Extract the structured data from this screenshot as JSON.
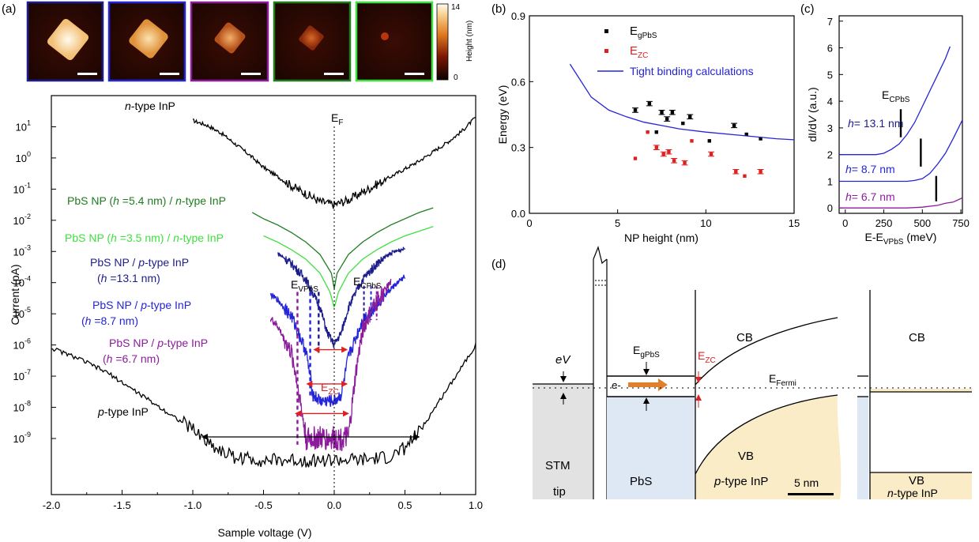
{
  "colors": {
    "black": "#000000",
    "dark_green": "#1e7d1e",
    "light_green": "#3ee03e",
    "navy": "#1c1c8c",
    "blue": "#2424d8",
    "purple": "#8c1c9c",
    "red": "#e02020",
    "orange": "#e0802a",
    "pbs_fill": "#dde8f4",
    "inp_fill": "#fbecc8",
    "tip_fill": "#e2e2e2"
  },
  "panel_a": {
    "panel_label": "(a)",
    "colorbar": {
      "title": "Height (nm)",
      "max_label": "14",
      "min_label": "0"
    },
    "image_frames": [
      "#1c1c8c",
      "#2424d8",
      "#8c1c9c",
      "#1e7d1e",
      "#3ee03e"
    ],
    "xlabel": "Sample voltage (V)",
    "ylabel": "Current (pA)",
    "xticks": [
      "-2.0",
      "-1.5",
      "-1.0",
      "-0.5",
      "0.0",
      "0.5",
      "1.0"
    ],
    "ytick_base": "10",
    "ytick_exps": [
      "1",
      "0",
      "-1",
      "-2",
      "-3",
      "-4",
      "-5",
      "-6",
      "-7",
      "-8",
      "-9"
    ],
    "fermi_label": "E",
    "fermi_sub": "F",
    "ev_label": "E",
    "ev_sub": "VPbS",
    "ec_label": "E",
    "ec_sub": "CPbS",
    "ezc_label": "E",
    "ezc_sub": "ZC",
    "curve_labels": {
      "ntype": {
        "pre": "",
        "em": "n",
        "post": "-type InP"
      },
      "ptype": {
        "pre": "",
        "em": "p",
        "post": "-type InP"
      },
      "g54": {
        "pre": "PbS NP (",
        "em": "h",
        "post": " =5.4 nm) / ",
        "em2": "n",
        "post2": "-type InP"
      },
      "g35": {
        "pre": "PbS NP (",
        "em": "h",
        "post": " =3.5 nm) / ",
        "em2": "n",
        "post2": "-type InP"
      },
      "b131_l1": {
        "pre": "PbS NP / ",
        "em": "p",
        "post": "-type InP"
      },
      "b131_l2": {
        "pre": "(",
        "em": "h",
        "post": " =13.1 nm)"
      },
      "b87_l1": {
        "pre": "PbS NP / ",
        "em": "p",
        "post": "-type InP"
      },
      "b87_l2": {
        "pre": "(",
        "em": "h",
        "post": " =8.7 nm)"
      },
      "p67_l1": {
        "pre": "PbS NP / ",
        "em": "p",
        "post": "-type InP"
      },
      "p67_l2": {
        "pre": "(",
        "em": "h",
        "post": " =6.7 nm)"
      }
    }
  },
  "panel_b": {
    "panel_label": "(b)",
    "xlabel": "NP height (nm)",
    "ylabel": "Energy (eV)",
    "xticks": [
      "0",
      "5",
      "10",
      "15"
    ],
    "yticks": [
      "0.0",
      "0.3",
      "0.6",
      "0.9"
    ],
    "legend": {
      "egpbs_main": "E",
      "egpbs_sub": "gPbS",
      "ezc_main": "E",
      "ezc_sub": "ZC",
      "tb": "Tight binding calculations"
    }
  },
  "panel_c": {
    "panel_label": "(c)",
    "xlabel_main": "E-E",
    "xlabel_sub": "VPbS",
    "xlabel_unit": " (meV)",
    "ylabel_main": "dI/d",
    "ylabel_em": "V",
    "ylabel_unit": " (a.u.)",
    "xticks": [
      "0",
      "250",
      "500",
      "750"
    ],
    "yticks": [
      "0",
      "1",
      "2",
      "3",
      "4",
      "5",
      "6",
      "7"
    ],
    "ec_label": "E",
    "ec_sub": "CPbS",
    "curve_labels": [
      "= 13.1 nm",
      "= 8.7 nm",
      "= 6.7 nm"
    ],
    "h_letter": "h"
  },
  "panel_d": {
    "panel_label": "(d)",
    "ev_label": "eV",
    "eg_label": "E",
    "eg_sub": "gPbS",
    "ezc_label": "E",
    "ezc_sub": "ZC",
    "electron": "e-",
    "cb": "CB",
    "vb": "VB",
    "cb_n": "CB",
    "vb_n": "VB",
    "efermi": "E",
    "efermi_sub": "Fermi",
    "stm1": "STM",
    "stm2": "tip",
    "pbs": "PbS",
    "ptype": {
      "em": "p",
      "post": "-type InP"
    },
    "ntype": {
      "em": "n",
      "post": "-type InP"
    },
    "scale": "5 nm"
  },
  "chart_data": [
    {
      "panel": "a",
      "type": "line",
      "title": "",
      "xlabel": "Sample voltage (V)",
      "ylabel": "Current (pA)",
      "xlim": [
        -2.0,
        1.0
      ],
      "ylog": true,
      "yticks_log10": [
        1,
        0,
        -1,
        -2,
        -3,
        -4,
        -5,
        -6,
        -7,
        -8,
        -9
      ],
      "series": [
        {
          "name": "n-type InP",
          "color": "#000000",
          "x": [
            -1.0,
            -0.9,
            -0.8,
            -0.7,
            -0.6,
            -0.5,
            -0.4,
            -0.3,
            -0.2,
            -0.1,
            0.0,
            0.1,
            0.2,
            0.3,
            0.4,
            0.5,
            0.6,
            0.7,
            0.8,
            0.9,
            1.0
          ],
          "log10_y": [
            1.2,
            1.05,
            0.8,
            0.45,
            0.1,
            -0.3,
            -0.6,
            -0.9,
            -1.15,
            -1.4,
            -1.5,
            -1.35,
            -1.1,
            -0.85,
            -0.6,
            -0.35,
            -0.1,
            0.2,
            0.5,
            0.85,
            1.3
          ],
          "noise": 0.12
        },
        {
          "name": "PbS NP (h =5.4 nm) / n-type InP",
          "color": "#1e7d1e",
          "x": [
            -0.58,
            -0.5,
            -0.4,
            -0.3,
            -0.2,
            -0.1,
            -0.02,
            0.0,
            0.02,
            0.1,
            0.2,
            0.3,
            0.4,
            0.5,
            0.6,
            0.7
          ],
          "log10_y": [
            -1.75,
            -1.95,
            -2.15,
            -2.4,
            -2.7,
            -3.1,
            -3.7,
            -4.2,
            -3.7,
            -3.1,
            -2.7,
            -2.4,
            -2.15,
            -1.95,
            -1.75,
            -1.6
          ],
          "noise": 0.0
        },
        {
          "name": "PbS NP (h =3.5 nm) / n-type InP",
          "color": "#3ee03e",
          "x": [
            -0.5,
            -0.4,
            -0.3,
            -0.2,
            -0.1,
            -0.03,
            0.0,
            0.03,
            0.1,
            0.2,
            0.3,
            0.4,
            0.5,
            0.6,
            0.7
          ],
          "log10_y": [
            -2.5,
            -2.7,
            -2.95,
            -3.25,
            -3.7,
            -4.3,
            -4.8,
            -4.3,
            -3.7,
            -3.25,
            -2.95,
            -2.7,
            -2.5,
            -2.35,
            -2.2
          ],
          "noise": 0.0
        },
        {
          "name": "PbS NP / p-type InP (h =13.1 nm)",
          "color": "#1c1c8c",
          "x": [
            -0.4,
            -0.3,
            -0.2,
            -0.1,
            -0.05,
            0.0,
            0.05,
            0.1,
            0.2,
            0.3,
            0.4,
            0.5
          ],
          "log10_y": [
            -3.05,
            -3.4,
            -3.9,
            -4.8,
            -5.6,
            -6.0,
            -5.6,
            -4.8,
            -3.9,
            -3.4,
            -3.05,
            -2.9
          ],
          "noise": 0.12
        },
        {
          "name": "PbS NP / p-type InP (h =8.7 nm)",
          "color": "#2424d8",
          "x": [
            -0.45,
            -0.4,
            -0.3,
            -0.2,
            -0.15,
            -0.1,
            0.0,
            0.05,
            0.1,
            0.2,
            0.3,
            0.4,
            0.5
          ],
          "log10_y": [
            -4.4,
            -4.55,
            -5.1,
            -6.2,
            -7.6,
            -7.8,
            -7.8,
            -7.6,
            -6.4,
            -5.2,
            -4.7,
            -4.2,
            -3.8
          ],
          "noise": 0.18
        },
        {
          "name": "PbS NP / p-type InP (h =6.7 nm)",
          "color": "#8c1c9c",
          "x": [
            -0.45,
            -0.4,
            -0.3,
            -0.25,
            -0.2,
            -0.1,
            0.0,
            0.1,
            0.15,
            0.2,
            0.3,
            0.4
          ],
          "log10_y": [
            -5.15,
            -5.4,
            -6.3,
            -7.5,
            -9.0,
            -9.0,
            -9.0,
            -9.0,
            -7.0,
            -5.5,
            -4.6,
            -4.0
          ],
          "noise": 0.25
        },
        {
          "name": "p-type InP",
          "color": "#000000",
          "x": [
            -2.0,
            -1.8,
            -1.6,
            -1.4,
            -1.2,
            -1.0,
            -0.9,
            -0.8,
            -0.7,
            -0.5,
            -0.2,
            0.0,
            0.2,
            0.4,
            0.5,
            0.6,
            0.7,
            0.8,
            0.9,
            1.0
          ],
          "log10_y": [
            -6.1,
            -6.45,
            -6.9,
            -7.5,
            -8.1,
            -8.7,
            -9.1,
            -9.4,
            -9.6,
            -9.7,
            -9.7,
            -9.7,
            -9.7,
            -9.6,
            -9.3,
            -8.8,
            -8.1,
            -7.4,
            -6.7,
            -6.0
          ],
          "noise": 0.14
        }
      ],
      "annotations": {
        "fermi_x": 0.0,
        "ev_markers": {
          "#8c1c9c": -0.26,
          "#2424d8": -0.17,
          "#1c1c8c": -0.11
        },
        "ec_markers": {
          "#1c1c8c": 0.21,
          "#2424d8": 0.26,
          "#8c1c9c": 0.3
        },
        "gap_arrows": [
          {
            "color": "#e02020",
            "x1": -0.11,
            "x2": 0.09,
            "log10_y": -6.15
          },
          {
            "color": "#e02020",
            "x1": -0.16,
            "x2": 0.09,
            "log10_y": -7.25
          },
          {
            "color": "#e02020",
            "x1": -0.24,
            "x2": 0.1,
            "log10_y": -8.2
          },
          {
            "color": "#000000",
            "x1": -0.9,
            "x2": 0.6,
            "log10_y": -8.95
          }
        ]
      }
    },
    {
      "panel": "b",
      "type": "scatter",
      "title": "",
      "xlabel": "NP height (nm)",
      "ylabel": "Energy (eV)",
      "xlim": [
        0,
        15
      ],
      "ylim": [
        0,
        0.9
      ],
      "series": [
        {
          "name": "EgPbS",
          "color": "#000000",
          "x": [
            6.0,
            6.8,
            7.2,
            7.5,
            7.8,
            8.1,
            8.7,
            9.1,
            10.2,
            11.6,
            12.3,
            13.1
          ],
          "y": [
            0.47,
            0.5,
            0.37,
            0.46,
            0.43,
            0.46,
            0.41,
            0.44,
            0.33,
            0.4,
            0.36,
            0.34
          ],
          "err": [
            0.01,
            0.01,
            0,
            0.01,
            0.01,
            0.01,
            0,
            0.01,
            0,
            0.01,
            0,
            0
          ]
        },
        {
          "name": "EZC",
          "color": "#e02020",
          "x": [
            6.0,
            6.7,
            7.2,
            7.6,
            7.9,
            8.2,
            8.8,
            9.2,
            10.3,
            11.7,
            12.2,
            13.1
          ],
          "y": [
            0.25,
            0.37,
            0.3,
            0.27,
            0.28,
            0.24,
            0.23,
            0.33,
            0.27,
            0.19,
            0.17,
            0.19
          ],
          "err": [
            0,
            0,
            0.01,
            0.01,
            0.01,
            0.01,
            0.01,
            0,
            0.01,
            0.01,
            0,
            0.01
          ]
        },
        {
          "name": "Tight binding calculations",
          "color": "#2424d8",
          "type": "line",
          "x": [
            2.3,
            3.5,
            4.5,
            5.5,
            6.5,
            7.5,
            8.5,
            10.0,
            12.0,
            14.0,
            15.0
          ],
          "y": [
            0.68,
            0.53,
            0.47,
            0.44,
            0.415,
            0.4,
            0.385,
            0.37,
            0.355,
            0.34,
            0.335
          ]
        }
      ]
    },
    {
      "panel": "c",
      "type": "line",
      "title": "",
      "xlabel": "E-EVPbS (meV)",
      "ylabel": "dI/dV (a.u.)",
      "xlim": [
        -40,
        760
      ],
      "ylim": [
        -0.2,
        7.2
      ],
      "series": [
        {
          "name": "h = 13.1 nm",
          "color": "#2424d8",
          "x": [
            -40,
            100,
            200,
            250,
            300,
            350,
            400,
            450,
            500,
            550,
            600,
            650,
            680
          ],
          "y": [
            2.0,
            2.0,
            2.0,
            2.05,
            2.2,
            2.4,
            2.75,
            3.2,
            3.8,
            4.4,
            5.0,
            5.6,
            6.05
          ]
        },
        {
          "name": "h = 8.7 nm",
          "color": "#2424d8",
          "x": [
            -40,
            100,
            200,
            300,
            400,
            450,
            500,
            550,
            600,
            650,
            700,
            760
          ],
          "y": [
            1.0,
            1.0,
            1.0,
            1.0,
            1.0,
            1.03,
            1.1,
            1.3,
            1.65,
            2.05,
            2.6,
            3.3
          ]
        },
        {
          "name": "h = 6.7 nm",
          "color": "#8c1c9c",
          "x": [
            -40,
            100,
            200,
            300,
            400,
            500,
            600,
            650,
            700,
            760
          ],
          "y": [
            0.0,
            0.0,
            0.0,
            0.0,
            0.0,
            0.03,
            0.1,
            0.18,
            0.22,
            0.38
          ]
        }
      ],
      "markers": [
        {
          "x": 360,
          "y0": 2.65,
          "y1": 3.7
        },
        {
          "x": 490,
          "y0": 1.55,
          "y1": 2.6
        },
        {
          "x": 590,
          "y0": 0.25,
          "y1": 1.2
        }
      ]
    }
  ]
}
